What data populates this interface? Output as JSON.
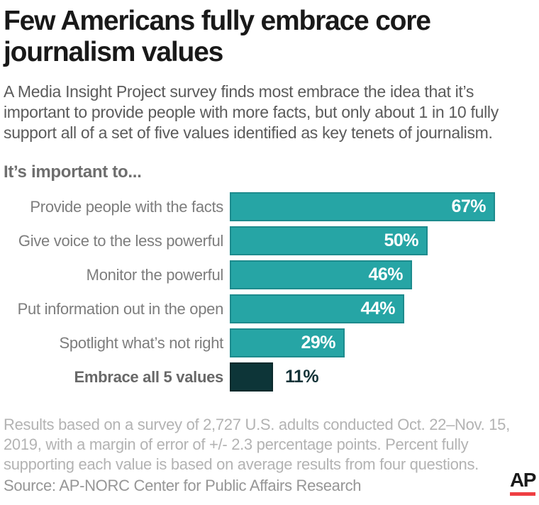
{
  "header": {
    "title_lines": [
      "Few Americans fully embrace core",
      "journalism values"
    ],
    "subtitle": "A Media Insight Project survey finds most embrace the idea that it’s important to provide people with more facts, but only about 1 in 10 fully support all of a set of five values identified as key tenets of journalism."
  },
  "section_label": "It’s important to...",
  "chart_data": {
    "type": "bar",
    "orientation": "horizontal",
    "title": "It’s important to...",
    "categories": [
      "Provide people with the facts",
      "Give voice to the less powerful",
      "Monitor the powerful",
      "Put information out in the open",
      "Spotlight what’s not right",
      "Embrace all 5 values"
    ],
    "values": [
      67,
      50,
      46,
      44,
      29,
      11
    ],
    "xlim": [
      0,
      100
    ],
    "grid": false,
    "legend": "none",
    "bar_color_default": "#26a5a5",
    "bar_color_emphasis": "#0d3538",
    "rows": [
      {
        "label": "Provide people with the facts",
        "value": 67,
        "value_label": "67%",
        "color": "#26a5a5",
        "border": "#1d8b8d",
        "label_bold": false,
        "value_inside": true
      },
      {
        "label": "Give voice to the less powerful",
        "value": 50,
        "value_label": "50%",
        "color": "#26a5a5",
        "border": "#1d8b8d",
        "label_bold": false,
        "value_inside": true
      },
      {
        "label": "Monitor the powerful",
        "value": 46,
        "value_label": "46%",
        "color": "#26a5a5",
        "border": "#1d8b8d",
        "label_bold": false,
        "value_inside": true
      },
      {
        "label": "Put information out in the open",
        "value": 44,
        "value_label": "44%",
        "color": "#26a5a5",
        "border": "#1d8b8d",
        "label_bold": false,
        "value_inside": true
      },
      {
        "label": "Spotlight what’s not right",
        "value": 29,
        "value_label": "29%",
        "color": "#26a5a5",
        "border": "#1d8b8d",
        "label_bold": false,
        "value_inside": true
      },
      {
        "label": "Embrace all 5 values",
        "value": 11,
        "value_label": "11%",
        "color": "#0d3538",
        "border": "#0a2a2c",
        "label_bold": true,
        "value_inside": false
      }
    ]
  },
  "footer": {
    "note": "Results based on a survey of 2,727 U.S. adults conducted Oct. 22–Nov. 15, 2019, with a margin of error of +/- 2.3 percentage points. Percent fully supporting each value is based on average results from four questions.",
    "source": "Source: AP-NORC Center for Public Affairs Research",
    "logo_text": "AP",
    "logo_bar_color": "#ef3e42"
  }
}
